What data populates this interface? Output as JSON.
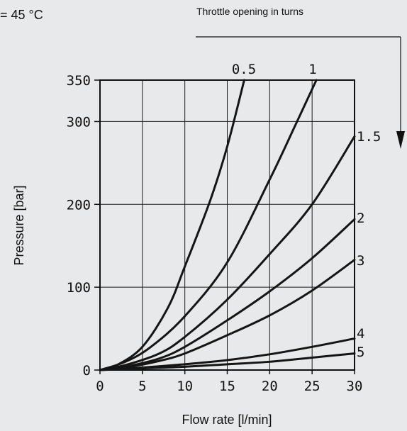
{
  "header": {
    "condition_text": "= 45 °C",
    "throttle_label": "Throttle opening in turns"
  },
  "chart_data": {
    "type": "line",
    "title": "",
    "xlabel": "Flow rate [l/min]",
    "ylabel": "Pressure [bar]",
    "xlim": [
      0,
      30
    ],
    "ylim": [
      0,
      350
    ],
    "x_ticks": [
      0,
      5,
      10,
      15,
      20,
      25,
      30
    ],
    "y_ticks": [
      0,
      100,
      200,
      300,
      350
    ],
    "grid": true,
    "series": [
      {
        "name": "0.5",
        "x": [
          0,
          2,
          5,
          8,
          10,
          13,
          15,
          17
        ],
        "y": [
          0,
          6,
          28,
          75,
          125,
          205,
          270,
          350
        ]
      },
      {
        "name": "1",
        "x": [
          0,
          3,
          6,
          10,
          15,
          20,
          23,
          25.5
        ],
        "y": [
          0,
          10,
          28,
          65,
          130,
          230,
          295,
          350
        ]
      },
      {
        "name": "1.5",
        "x": [
          0,
          3,
          7,
          10,
          15,
          20,
          25,
          30
        ],
        "y": [
          0,
          6,
          20,
          40,
          85,
          140,
          200,
          282
        ]
      },
      {
        "name": "2",
        "x": [
          0,
          3,
          7,
          10,
          15,
          20,
          25,
          30
        ],
        "y": [
          0,
          4,
          14,
          28,
          60,
          95,
          135,
          182
        ]
      },
      {
        "name": "3",
        "x": [
          0,
          3,
          7,
          10,
          15,
          20,
          25,
          30
        ],
        "y": [
          0,
          3,
          11,
          20,
          42,
          66,
          96,
          133
        ]
      },
      {
        "name": "4",
        "x": [
          0,
          5,
          10,
          15,
          20,
          25,
          30
        ],
        "y": [
          0,
          3,
          7,
          12,
          19,
          28,
          38
        ]
      },
      {
        "name": "5",
        "x": [
          0,
          5,
          10,
          15,
          20,
          25,
          30
        ],
        "y": [
          0,
          2,
          4,
          7,
          10,
          15,
          20
        ]
      }
    ]
  }
}
